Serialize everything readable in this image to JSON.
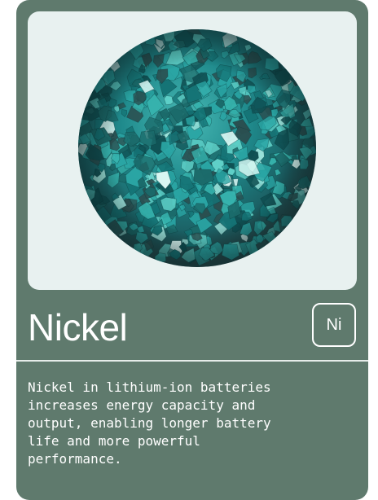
{
  "element": {
    "name": "Nickel",
    "symbol": "Ni",
    "description": "Nickel in lithium-ion batteries\nincreases energy capacity and\noutput, enabling longer battery\nlife and more powerful\nperformance.",
    "image_subject": "nickel-crystal-sphere"
  },
  "colors": {
    "card_background": "#5f7a6d",
    "image_background": "#e8f1f0",
    "crystal_primary": "#1f8a8c",
    "text": "#ffffff"
  }
}
